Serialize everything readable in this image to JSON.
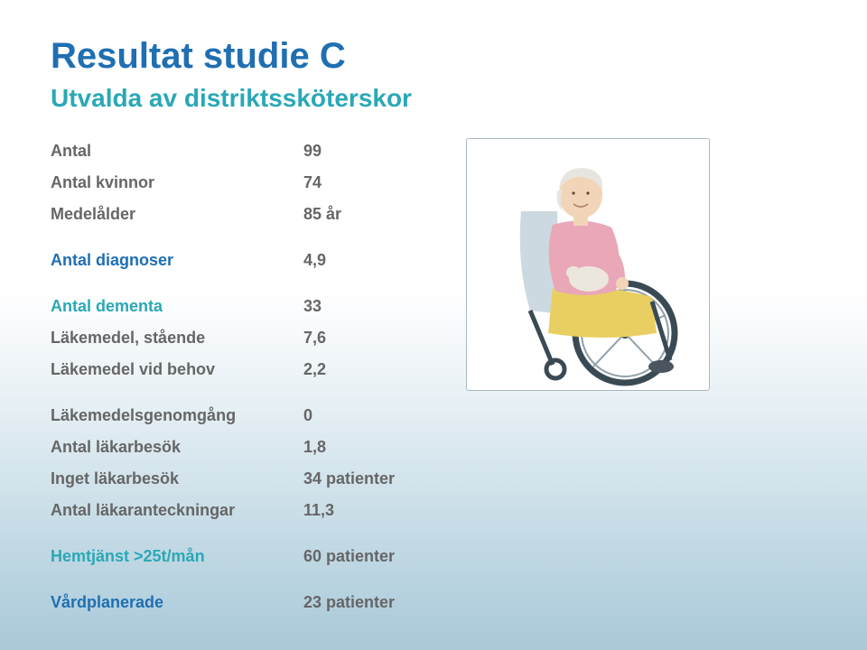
{
  "title": "Resultat studie C",
  "subtitle": "Utvalda av distriktssköterskor",
  "rows": [
    {
      "label": "Antal",
      "value": "99",
      "color": "gray"
    },
    {
      "label": "Antal kvinnor",
      "value": "74",
      "color": "gray"
    },
    {
      "label": "Medelålder",
      "value": "85 år",
      "color": "gray"
    },
    {
      "label": "Antal diagnoser",
      "value": "4,9",
      "color": "blue",
      "gap_before": true
    },
    {
      "label": "Antal dementa",
      "value": "33",
      "color": "teal",
      "gap_before": true
    },
    {
      "label": "Läkemedel, stående",
      "value": "7,6",
      "color": "gray"
    },
    {
      "label": "Läkemedel vid behov",
      "value": "2,2",
      "color": "gray"
    },
    {
      "label": "Läkemedelsgenomgång",
      "value": "0",
      "color": "gray",
      "gap_before": true
    },
    {
      "label": " Antal läkarbesök",
      "value": "1,8",
      "color": "gray"
    },
    {
      "label": "Inget läkarbesök",
      "value": "34 patienter",
      "color": "gray"
    },
    {
      "label": "Antal läkaranteckningar",
      "value": "11,3",
      "color": "gray"
    },
    {
      "label": "Hemtjänst   >25t/mån",
      "value": "60  patienter",
      "color": "teal",
      "gap_before": true
    },
    {
      "label": "Vårdplanerade",
      "value": "23 patienter",
      "color": "blue",
      "gap_before": true
    }
  ],
  "illustration": {
    "caption": "elderly-woman-in-wheelchair",
    "face_color": "#f2d5b8",
    "hair_color": "#e8e4df",
    "cardigan_color": "#e9a7b8",
    "skirt_color": "#e9cf62",
    "wheel_color": "#3a4a55",
    "rim_color": "#8fa0aa",
    "back_color": "#bfcfd8",
    "bg_color": "#ffffff"
  },
  "colors": {
    "title_blue": "#1f6fb2",
    "subtitle_teal": "#2aa8b5",
    "text_gray": "#666666",
    "border": "#a8b8c0",
    "gradient_top": "#ffffff",
    "gradient_mid": "#c8dde7",
    "gradient_bottom": "#a9c9d9"
  },
  "fontsize": {
    "title": 40,
    "subtitle": 28,
    "body": 18
  }
}
